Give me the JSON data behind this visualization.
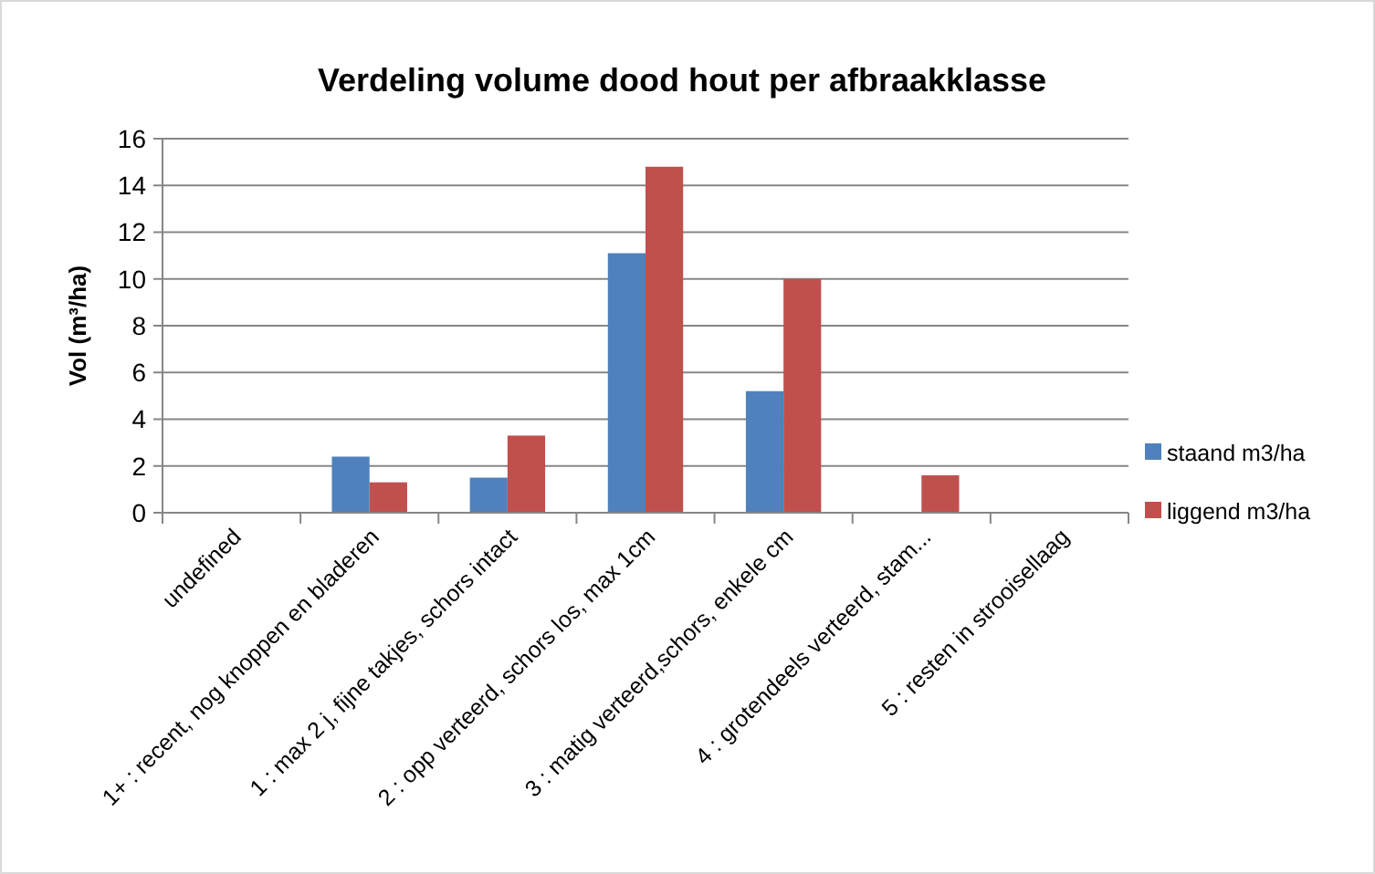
{
  "chart_data": {
    "type": "bar",
    "title": "Verdeling volume dood hout per afbraakklasse",
    "ylabel": "Vol (m³/ha)",
    "categories": [
      "undefined",
      "1+ :  recent, nog knoppen en bladeren",
      "1 : max 2 j, fijne takjes, schors intact",
      "2 : opp verteerd, schors los, max 1cm",
      "3 : matig verteerd,schors, enkele cm",
      "4 : grotendeels verteerd, stam...",
      "5 : resten in strooisellaag"
    ],
    "series": [
      {
        "name": "staand m3/ha",
        "color": "#4f81bd",
        "values": [
          0,
          2.4,
          1.5,
          11.1,
          5.2,
          0,
          0
        ]
      },
      {
        "name": "liggend m3/ha",
        "color": "#c0504d",
        "values": [
          0,
          1.3,
          3.3,
          14.8,
          10.0,
          1.6,
          0
        ]
      }
    ],
    "ylim": [
      0,
      16
    ],
    "yticks": [
      0,
      2,
      4,
      6,
      8,
      10,
      12,
      14,
      16
    ],
    "grid": "y",
    "legend": "right"
  }
}
